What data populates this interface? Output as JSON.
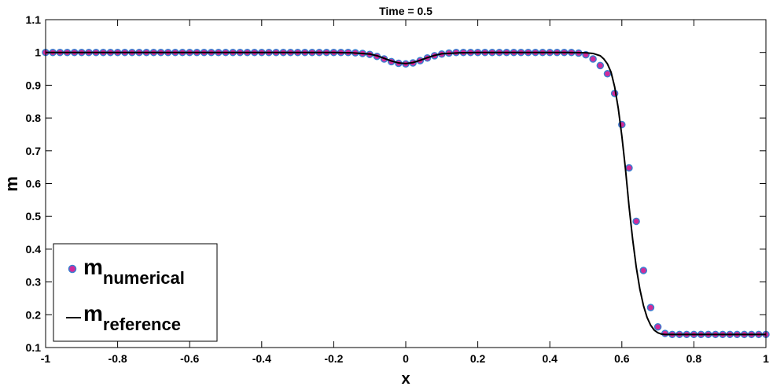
{
  "chart_data": {
    "type": "scatter",
    "title": "Time = 0.5",
    "xlabel": "x",
    "ylabel": "m",
    "xlim": [
      -1,
      1
    ],
    "ylim": [
      0.1,
      1.1
    ],
    "xticks": [
      "-1",
      "-0.8",
      "-0.6",
      "-0.4",
      "-0.2",
      "0",
      "0.2",
      "0.4",
      "0.6",
      "0.8",
      "1"
    ],
    "yticks": [
      "0.1",
      "0.2",
      "0.3",
      "0.4",
      "0.5",
      "0.6",
      "0.7",
      "0.8",
      "0.9",
      "1",
      "1.1"
    ],
    "grid": false,
    "legend_placement": "bottom-left",
    "colors": {
      "numerical_fill": "#d12b9a",
      "numerical_edge": "#3a7fd0",
      "reference_line": "#000000"
    },
    "series": [
      {
        "name": "m",
        "name_subscript": "numerical",
        "kind": "markers",
        "x": [
          -1.0,
          -0.98,
          -0.96,
          -0.94,
          -0.92,
          -0.9,
          -0.88,
          -0.86,
          -0.84,
          -0.82,
          -0.8,
          -0.78,
          -0.76,
          -0.74,
          -0.72,
          -0.7,
          -0.68,
          -0.66,
          -0.64,
          -0.62,
          -0.6,
          -0.58,
          -0.56,
          -0.54,
          -0.52,
          -0.5,
          -0.48,
          -0.46,
          -0.44,
          -0.42,
          -0.4,
          -0.38,
          -0.36,
          -0.34,
          -0.32,
          -0.3,
          -0.28,
          -0.26,
          -0.24,
          -0.22,
          -0.2,
          -0.18,
          -0.16,
          -0.14,
          -0.12,
          -0.1,
          -0.08,
          -0.06,
          -0.04,
          -0.02,
          0.0,
          0.02,
          0.04,
          0.06,
          0.08,
          0.1,
          0.12,
          0.14,
          0.16,
          0.18,
          0.2,
          0.22,
          0.24,
          0.26,
          0.28,
          0.3,
          0.32,
          0.34,
          0.36,
          0.38,
          0.4,
          0.42,
          0.44,
          0.46,
          0.48,
          0.5,
          0.52,
          0.54,
          0.56,
          0.58,
          0.6,
          0.62,
          0.64,
          0.66,
          0.68,
          0.7,
          0.72,
          0.74,
          0.76,
          0.78,
          0.8,
          0.82,
          0.84,
          0.86,
          0.88,
          0.9,
          0.92,
          0.94,
          0.96,
          0.98,
          1.0
        ],
        "y": [
          1.0,
          1.0,
          1.0,
          1.0,
          1.0,
          1.0,
          1.0,
          1.0,
          1.0,
          1.0,
          1.0,
          1.0,
          1.0,
          1.0,
          1.0,
          1.0,
          1.0,
          1.0,
          1.0,
          1.0,
          1.0,
          1.0,
          1.0,
          1.0,
          1.0,
          1.0,
          1.0,
          1.0,
          1.0,
          1.0,
          1.0,
          1.0,
          1.0,
          1.0,
          1.0,
          1.0,
          1.0,
          1.0,
          1.0,
          1.0,
          1.0,
          1.0,
          1.0,
          0.999,
          0.997,
          0.994,
          0.988,
          0.98,
          0.972,
          0.967,
          0.965,
          0.968,
          0.975,
          0.983,
          0.99,
          0.995,
          0.998,
          1.0,
          1.0,
          1.0,
          1.0,
          1.0,
          1.0,
          1.0,
          1.0,
          1.0,
          1.0,
          1.0,
          1.0,
          1.0,
          1.0,
          1.0,
          1.0,
          1.0,
          0.998,
          0.993,
          0.98,
          0.96,
          0.935,
          0.875,
          0.78,
          0.648,
          0.485,
          0.335,
          0.222,
          0.163,
          0.143,
          0.14,
          0.14,
          0.14,
          0.14,
          0.14,
          0.14,
          0.14,
          0.14,
          0.14,
          0.14,
          0.14,
          0.14,
          0.14,
          0.14
        ]
      },
      {
        "name": "m",
        "name_subscript": "reference",
        "kind": "line",
        "x": [
          -1.0,
          -0.2,
          -0.15,
          -0.1,
          -0.08,
          -0.06,
          -0.04,
          -0.02,
          0.0,
          0.02,
          0.04,
          0.06,
          0.08,
          0.1,
          0.15,
          0.2,
          0.45,
          0.5,
          0.52,
          0.54,
          0.55,
          0.56,
          0.57,
          0.58,
          0.59,
          0.6,
          0.61,
          0.62,
          0.63,
          0.64,
          0.65,
          0.66,
          0.67,
          0.68,
          0.69,
          0.7,
          0.71,
          0.72,
          0.73,
          0.75,
          1.0
        ],
        "y": [
          1.0,
          1.0,
          0.999,
          0.995,
          0.99,
          0.982,
          0.974,
          0.968,
          0.966,
          0.969,
          0.976,
          0.984,
          0.991,
          0.996,
          0.999,
          1.0,
          1.0,
          0.999,
          0.997,
          0.99,
          0.98,
          0.965,
          0.94,
          0.895,
          0.83,
          0.745,
          0.645,
          0.53,
          0.43,
          0.345,
          0.278,
          0.228,
          0.192,
          0.168,
          0.153,
          0.145,
          0.141,
          0.14,
          0.14,
          0.14,
          0.14
        ]
      }
    ]
  }
}
